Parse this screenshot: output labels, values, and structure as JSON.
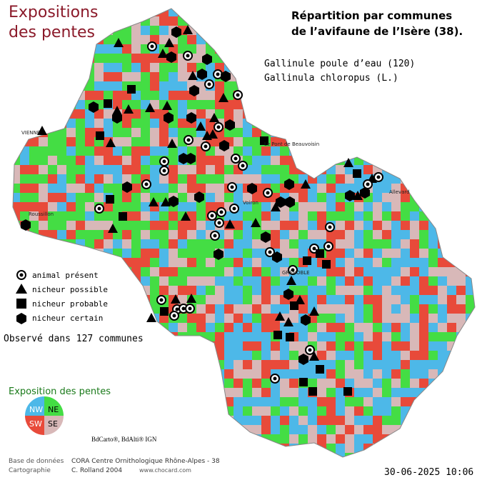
{
  "header": {
    "title_line1": "Expositions",
    "title_line2": "des pentes",
    "subtitle_line1": "Répartition par communes",
    "subtitle_line2": "de l’avifaune de l’Isère (38).",
    "species_common": "Gallinule poule d’eau  (120)",
    "species_latin": "Gallinula chloropus (L.)"
  },
  "legend": {
    "items": [
      "animal présent",
      "nicheur possible",
      "nicheur probable",
      "nicheur certain"
    ],
    "observed": "Observé dans 127 communes"
  },
  "exposition": {
    "title": "Exposition des pentes",
    "nw": "NW",
    "ne": "NE",
    "sw": "SW",
    "se": "SE",
    "credit": "BdCarto®, BdAlti® IGN"
  },
  "places": [
    "VIENNE",
    "Le Pont de Beauvoisin",
    "Allevard",
    "GRENOBLE",
    "Roussillon",
    "Voiron"
  ],
  "footer": {
    "label1": "Base de données",
    "value1": "CORA Centre Ornithologique Rhône-Alpes - 38",
    "label2": "Cartographie",
    "value2": "C. Rolland 2004",
    "url": "www.chocard.com",
    "date": "30-06-2025 10:06"
  }
}
